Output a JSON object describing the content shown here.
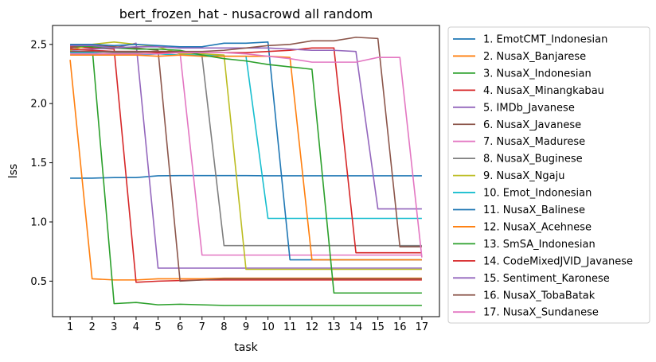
{
  "chart_data": {
    "type": "line",
    "title": "bert_frozen_hat - nusacrowd all random",
    "xlabel": "task",
    "ylabel": "lss",
    "x": [
      1,
      2,
      3,
      4,
      5,
      6,
      7,
      8,
      9,
      10,
      11,
      12,
      13,
      14,
      15,
      16,
      17
    ],
    "x_ticks": [
      "1",
      "2",
      "3",
      "4",
      "5",
      "6",
      "7",
      "8",
      "9",
      "10",
      "11",
      "12",
      "13",
      "14",
      "15",
      "16",
      "17"
    ],
    "y_ticks": [
      "0.5",
      "1.0",
      "1.5",
      "2.0",
      "2.5"
    ],
    "xlim": [
      0.2,
      17.8
    ],
    "ylim": [
      0.2,
      2.66
    ],
    "legend_position": "outside-right",
    "series": [
      {
        "name": "1. EmotCMT_Indonesian",
        "color": "#1f77b4",
        "values": [
          1.37,
          1.37,
          1.375,
          1.375,
          1.39,
          1.392,
          1.392,
          1.392,
          1.392,
          1.39,
          1.39,
          1.39,
          1.39,
          1.39,
          1.39,
          1.39,
          1.39
        ]
      },
      {
        "name": "2. NusaX_Banjarese",
        "color": "#ff7f0e",
        "values": [
          2.37,
          0.52,
          0.51,
          0.51,
          0.52,
          0.52,
          0.52,
          0.525,
          0.525,
          0.525,
          0.525,
          0.525,
          0.525,
          0.525,
          0.525,
          0.525,
          0.525
        ]
      },
      {
        "name": "3. NusaX_Indonesian",
        "color": "#2ca02c",
        "values": [
          2.49,
          2.48,
          0.31,
          0.32,
          0.3,
          0.305,
          0.3,
          0.295,
          0.295,
          0.295,
          0.295,
          0.295,
          0.295,
          0.295,
          0.295,
          0.295,
          0.295
        ]
      },
      {
        "name": "4. NusaX_Minangkabau",
        "color": "#d62728",
        "values": [
          2.48,
          2.47,
          2.46,
          0.49,
          0.5,
          0.505,
          0.51,
          0.51,
          0.51,
          0.51,
          0.51,
          0.51,
          0.51,
          0.51,
          0.51,
          0.51,
          0.51
        ]
      },
      {
        "name": "5. IMDb_Javanese",
        "color": "#9467bd",
        "values": [
          2.45,
          2.46,
          2.47,
          2.51,
          0.61,
          0.61,
          0.61,
          0.61,
          0.61,
          0.61,
          0.61,
          0.61,
          0.61,
          0.61,
          0.61,
          0.61,
          0.61
        ]
      },
      {
        "name": "6. NusaX_Javanese",
        "color": "#8c564b",
        "values": [
          2.47,
          2.49,
          2.48,
          2.47,
          2.45,
          0.5,
          0.51,
          0.52,
          0.52,
          0.52,
          0.52,
          0.52,
          0.52,
          0.52,
          0.52,
          0.52,
          0.52
        ]
      },
      {
        "name": "7. NusaX_Madurese",
        "color": "#e377c2",
        "values": [
          2.46,
          2.45,
          2.43,
          2.44,
          2.43,
          2.43,
          0.72,
          0.72,
          0.72,
          0.72,
          0.72,
          0.72,
          0.72,
          0.72,
          0.72,
          0.72,
          0.72
        ]
      },
      {
        "name": "8. NusaX_Buginese",
        "color": "#7f7f7f",
        "values": [
          2.44,
          2.44,
          2.43,
          2.43,
          2.44,
          2.44,
          2.4,
          0.8,
          0.8,
          0.8,
          0.8,
          0.8,
          0.8,
          0.8,
          0.8,
          0.8,
          0.8
        ]
      },
      {
        "name": "9. NusaX_Ngaju",
        "color": "#bcbd22",
        "values": [
          2.45,
          2.5,
          2.52,
          2.5,
          2.48,
          2.42,
          2.42,
          2.41,
          0.6,
          0.6,
          0.6,
          0.6,
          0.6,
          0.6,
          0.6,
          0.6,
          0.6
        ]
      },
      {
        "name": "10. Emot_Indonesian",
        "color": "#17becf",
        "values": [
          2.43,
          2.43,
          2.41,
          2.41,
          2.42,
          2.41,
          2.41,
          2.4,
          2.4,
          1.03,
          1.03,
          1.03,
          1.03,
          1.03,
          1.03,
          1.03,
          1.03
        ]
      },
      {
        "name": "11. NusaX_Balinese",
        "color": "#1f77b4",
        "values": [
          2.5,
          2.5,
          2.49,
          2.5,
          2.49,
          2.48,
          2.48,
          2.51,
          2.51,
          2.52,
          0.68,
          0.68,
          0.68,
          0.68,
          0.68,
          0.68,
          0.68
        ]
      },
      {
        "name": "12. NusaX_Acehnese",
        "color": "#ff7f0e",
        "values": [
          2.41,
          2.41,
          2.41,
          2.41,
          2.4,
          2.41,
          2.4,
          2.4,
          2.4,
          2.4,
          2.39,
          0.68,
          0.68,
          0.68,
          0.68,
          0.68,
          0.68
        ]
      },
      {
        "name": "13. SmSA_Indonesian",
        "color": "#2ca02c",
        "values": [
          2.49,
          2.48,
          2.47,
          2.46,
          2.46,
          2.45,
          2.41,
          2.38,
          2.36,
          2.33,
          2.31,
          2.29,
          0.4,
          0.4,
          0.4,
          0.4,
          0.4
        ]
      },
      {
        "name": "14. CodeMixedJVID_Javanese",
        "color": "#d62728",
        "values": [
          2.46,
          2.45,
          2.44,
          2.44,
          2.43,
          2.43,
          2.43,
          2.43,
          2.43,
          2.44,
          2.45,
          2.47,
          2.47,
          0.74,
          0.74,
          0.74,
          0.74
        ]
      },
      {
        "name": "15. Sentiment_Karonese",
        "color": "#9467bd",
        "values": [
          2.49,
          2.49,
          2.47,
          2.48,
          2.48,
          2.47,
          2.47,
          2.47,
          2.47,
          2.47,
          2.46,
          2.45,
          2.45,
          2.44,
          1.11,
          1.11,
          1.11
        ]
      },
      {
        "name": "16. NusaX_TobaBatak",
        "color": "#8c564b",
        "values": [
          2.44,
          2.44,
          2.44,
          2.44,
          2.44,
          2.44,
          2.44,
          2.45,
          2.47,
          2.49,
          2.5,
          2.53,
          2.53,
          2.56,
          2.55,
          0.79,
          0.79
        ]
      },
      {
        "name": "17. NusaX_Sundanese",
        "color": "#e377c2",
        "values": [
          2.42,
          2.42,
          2.42,
          2.42,
          2.42,
          2.43,
          2.43,
          2.43,
          2.42,
          2.4,
          2.38,
          2.35,
          2.35,
          2.35,
          2.39,
          2.39,
          0.7
        ]
      }
    ]
  }
}
